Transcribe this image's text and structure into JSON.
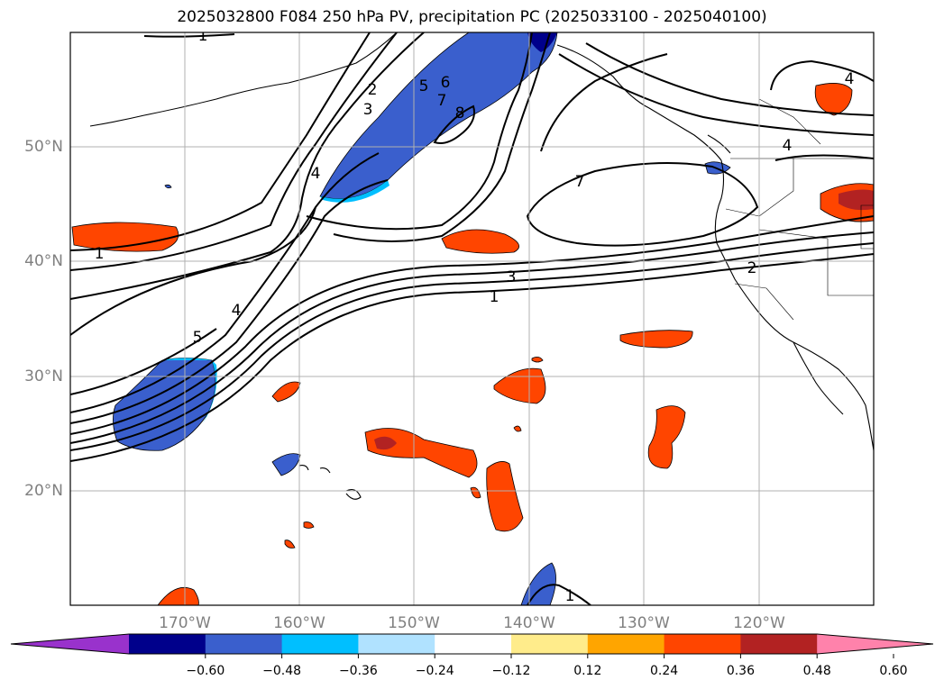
{
  "title": "2025032800 F084 250 hPa PV, precipitation PC (2025033100 - 2025040100)",
  "axes": {
    "lon_labels": [
      "170°W",
      "160°W",
      "150°W",
      "140°W",
      "130°W",
      "120°W"
    ],
    "lat_labels": [
      "50°N",
      "40°N",
      "30°N",
      "20°N"
    ],
    "lon_range": [
      -180,
      -110
    ],
    "lat_range": [
      10,
      60
    ],
    "grid": true
  },
  "colorbar": {
    "extend": "both",
    "ticks": [
      "−0.60",
      "−0.48",
      "−0.36",
      "−0.24",
      "−0.12",
      "0.12",
      "0.24",
      "0.36",
      "0.48",
      "0.60"
    ],
    "colors": [
      "#9932cc",
      "#00008b",
      "#3a5fcd",
      "#00bfff",
      "#b0e2ff",
      "#ffffff",
      "#ffec8b",
      "#ffa500",
      "#ff4500",
      "#b22222",
      "#ff82ab"
    ]
  },
  "contours": {
    "variable": "250 hPa PV",
    "labels": [
      "1",
      "2",
      "3",
      "4",
      "5",
      "6",
      "7",
      "8"
    ]
  },
  "shading": {
    "variable": "precipitation PC"
  }
}
